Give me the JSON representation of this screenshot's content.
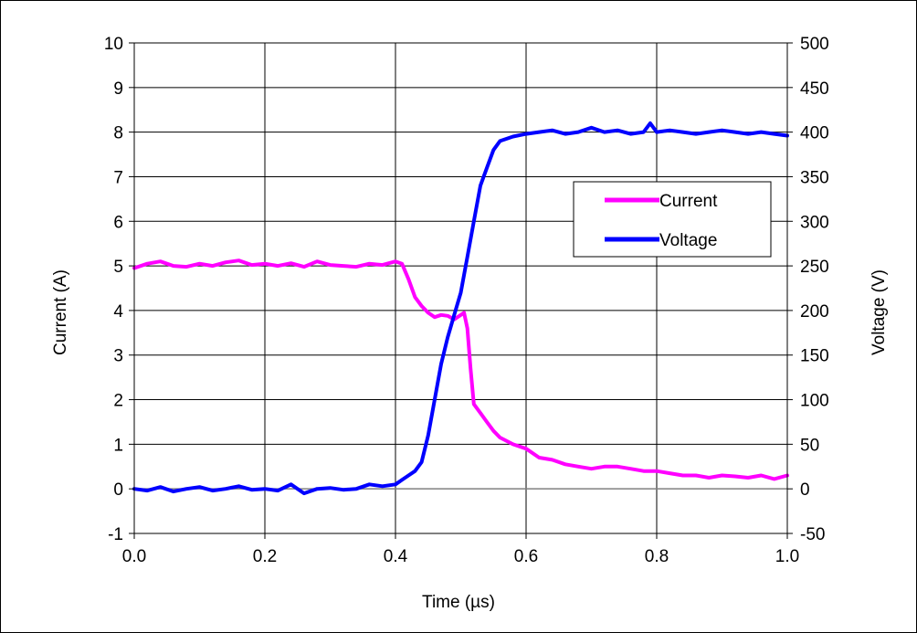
{
  "chart_data": {
    "type": "line",
    "xlabel": "Time (µs)",
    "ylabel_left": "Current (A)",
    "ylabel_right": "Voltage (V)",
    "xlim": [
      0.0,
      1.0
    ],
    "ylim_left": [
      -1,
      10
    ],
    "ylim_right": [
      -50,
      500
    ],
    "x_ticks": [
      "0.0",
      "0.2",
      "0.4",
      "0.6",
      "0.8",
      "1.0"
    ],
    "y_left_ticks": [
      "-1",
      "0",
      "1",
      "2",
      "3",
      "4",
      "5",
      "6",
      "7",
      "8",
      "9",
      "10"
    ],
    "y_right_ticks": [
      "-50",
      "0",
      "50",
      "100",
      "150",
      "200",
      "250",
      "300",
      "350",
      "400",
      "450",
      "500"
    ],
    "grid": true,
    "legend_position": "right",
    "series": [
      {
        "name": "Current",
        "axis": "left",
        "color": "#ff00ff",
        "x": [
          0.0,
          0.02,
          0.04,
          0.06,
          0.08,
          0.1,
          0.12,
          0.14,
          0.16,
          0.18,
          0.2,
          0.22,
          0.24,
          0.26,
          0.28,
          0.3,
          0.32,
          0.34,
          0.36,
          0.38,
          0.4,
          0.41,
          0.42,
          0.43,
          0.44,
          0.45,
          0.46,
          0.47,
          0.48,
          0.49,
          0.5,
          0.505,
          0.51,
          0.515,
          0.52,
          0.53,
          0.54,
          0.55,
          0.56,
          0.58,
          0.6,
          0.62,
          0.64,
          0.66,
          0.68,
          0.7,
          0.72,
          0.74,
          0.76,
          0.78,
          0.8,
          0.82,
          0.84,
          0.86,
          0.88,
          0.9,
          0.92,
          0.94,
          0.96,
          0.98,
          1.0
        ],
        "values": [
          4.95,
          5.05,
          5.1,
          5.0,
          4.98,
          5.05,
          5.0,
          5.08,
          5.12,
          5.02,
          5.05,
          5.0,
          5.06,
          4.98,
          5.1,
          5.02,
          5.0,
          4.98,
          5.05,
          5.02,
          5.1,
          5.05,
          4.7,
          4.3,
          4.1,
          3.95,
          3.85,
          3.9,
          3.88,
          3.8,
          3.9,
          3.95,
          3.6,
          2.7,
          1.9,
          1.7,
          1.5,
          1.3,
          1.15,
          1.0,
          0.9,
          0.7,
          0.65,
          0.55,
          0.5,
          0.45,
          0.5,
          0.5,
          0.45,
          0.4,
          0.4,
          0.35,
          0.3,
          0.3,
          0.25,
          0.3,
          0.28,
          0.25,
          0.3,
          0.22,
          0.3
        ]
      },
      {
        "name": "Voltage",
        "axis": "right",
        "color": "#0000ff",
        "x": [
          0.0,
          0.02,
          0.04,
          0.06,
          0.08,
          0.1,
          0.12,
          0.14,
          0.16,
          0.18,
          0.2,
          0.22,
          0.24,
          0.26,
          0.28,
          0.3,
          0.32,
          0.34,
          0.36,
          0.38,
          0.4,
          0.41,
          0.42,
          0.43,
          0.44,
          0.45,
          0.46,
          0.47,
          0.48,
          0.49,
          0.5,
          0.51,
          0.52,
          0.53,
          0.54,
          0.55,
          0.56,
          0.58,
          0.6,
          0.62,
          0.64,
          0.66,
          0.68,
          0.7,
          0.72,
          0.74,
          0.76,
          0.78,
          0.79,
          0.8,
          0.82,
          0.84,
          0.86,
          0.88,
          0.9,
          0.92,
          0.94,
          0.96,
          0.98,
          1.0
        ],
        "values": [
          0,
          -2,
          2,
          -3,
          0,
          2,
          -2,
          0,
          3,
          -1,
          0,
          -2,
          5,
          -5,
          0,
          1,
          -1,
          0,
          5,
          3,
          5,
          10,
          15,
          20,
          30,
          60,
          100,
          140,
          170,
          195,
          220,
          260,
          300,
          340,
          360,
          380,
          390,
          395,
          398,
          400,
          402,
          398,
          400,
          405,
          400,
          402,
          398,
          400,
          410,
          400,
          402,
          400,
          398,
          400,
          402,
          400,
          398,
          400,
          398,
          396
        ]
      }
    ]
  }
}
